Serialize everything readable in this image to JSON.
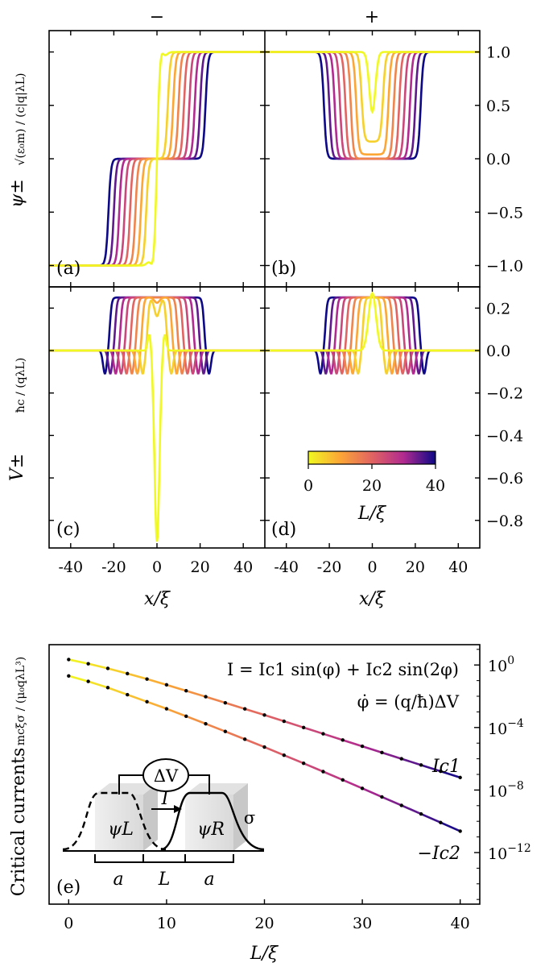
{
  "chart_data": [
    {
      "type": "line",
      "panel": "(a)",
      "column_title": "−",
      "ylabel": "ψ±",
      "ylabel_units": "√(ε₀m) / (c|q|λL)",
      "xlim": [
        -50,
        50
      ],
      "ylim": [
        -1.2,
        1.2
      ],
      "x_ticks": [
        "-40",
        "-20",
        "0",
        "20",
        "40"
      ],
      "y_ticks": [
        "−1.0",
        "−0.5",
        "0.0",
        "0.5",
        "1.0"
      ],
      "series_L": [
        0,
        5,
        10,
        15,
        20,
        25,
        30,
        35,
        40
      ],
      "description_shape": "odd kink profile; plateau 0 between ±L/2, ±1 outside"
    },
    {
      "type": "line",
      "panel": "(b)",
      "column_title": "+",
      "xlim": [
        -50,
        50
      ],
      "ylim": [
        -1.2,
        1.2
      ],
      "x_ticks": [
        "-40",
        "-20",
        "0",
        "20",
        "40"
      ],
      "y_ticks": [
        "−1.0",
        "−0.5",
        "0.0",
        "0.5",
        "1.0"
      ],
      "series_L": [
        0,
        5,
        10,
        15,
        20,
        25,
        30,
        35,
        40
      ],
      "min_values": [
        0.44,
        0.16,
        0.04,
        0,
        0,
        0,
        0,
        0,
        0
      ]
    },
    {
      "type": "line",
      "panel": "(c)",
      "ylabel": "V±",
      "ylabel_units": "ħc / (qλL)",
      "xlabel": "x/ξ",
      "xlim": [
        -50,
        50
      ],
      "ylim": [
        -0.93,
        0.3
      ],
      "x_ticks": [
        "-40",
        "-20",
        "0",
        "20",
        "40"
      ],
      "y_ticks": [
        "−0.8",
        "−0.6",
        "−0.4",
        "−0.2",
        "0.0",
        "0.2"
      ],
      "series_L": [
        0,
        5,
        10,
        15,
        20,
        25,
        30,
        35,
        40
      ],
      "plateau": 0.25,
      "dip": -0.11,
      "L0_min": -0.9
    },
    {
      "type": "line",
      "panel": "(d)",
      "xlabel": "x/ξ",
      "xlim": [
        -50,
        50
      ],
      "ylim": [
        -0.93,
        0.3
      ],
      "x_ticks": [
        "-40",
        "-20",
        "0",
        "20",
        "40"
      ],
      "y_ticks": [
        "−0.8",
        "−0.6",
        "−0.4",
        "−0.2",
        "0.0",
        "0.2"
      ],
      "series_L": [
        0,
        5,
        10,
        15,
        20,
        25,
        30,
        35,
        40
      ],
      "plateau": 0.25,
      "dip": -0.11,
      "L0_peak": 0.27,
      "colorbar": {
        "label": "L/ξ",
        "range": [
          0,
          40
        ],
        "ticks": [
          "0",
          "20",
          "40"
        ]
      }
    },
    {
      "type": "line",
      "panel": "(e)",
      "yscale": "log",
      "ylabel": "Critical currents",
      "ylabel_units": "mcξσ / (μ₀qλL³)",
      "xlabel": "L/ξ",
      "xlim": [
        -2,
        42
      ],
      "ylim_log10": [
        -15.3,
        1.3
      ],
      "x_ticks": [
        "0",
        "10",
        "20",
        "30",
        "40"
      ],
      "y_ticks": [
        "10^0",
        "10^−4",
        "10^−8",
        "10^−12"
      ],
      "equations": [
        "I = Ic1 sin(φ) + Ic2 sin(2φ)",
        "φ̇ = (q/ħ)ΔV"
      ],
      "series": [
        {
          "name": "Ic1",
          "x": [
            0,
            2,
            4,
            6,
            8,
            10,
            12,
            14,
            16,
            18,
            20,
            22,
            24,
            26,
            28,
            30,
            32,
            34,
            36,
            38,
            40
          ],
          "log10_y": [
            0.35,
            0.08,
            -0.22,
            -0.55,
            -0.9,
            -1.27,
            -1.65,
            -2.03,
            -2.42,
            -2.81,
            -3.2,
            -3.6,
            -4.0,
            -4.4,
            -4.8,
            -5.2,
            -5.6,
            -6.0,
            -6.4,
            -6.8,
            -7.2
          ]
        },
        {
          "name": "−Ic2",
          "x": [
            0,
            2,
            4,
            6,
            8,
            10,
            12,
            14,
            16,
            18,
            20,
            22,
            24,
            26,
            28,
            30,
            32,
            34,
            36,
            38,
            40
          ],
          "log10_y": [
            -0.7,
            -1.05,
            -1.45,
            -1.9,
            -2.35,
            -2.8,
            -3.28,
            -3.76,
            -4.25,
            -4.75,
            -5.25,
            -5.77,
            -6.29,
            -6.82,
            -7.35,
            -7.89,
            -8.44,
            -8.98,
            -9.53,
            -10.08,
            -10.63
          ]
        }
      ],
      "schematic": {
        "voltage": "ΔV",
        "current": "I",
        "left": "ψL",
        "right": "ψR",
        "sigma": "σ",
        "dims": [
          "a",
          "L",
          "a"
        ]
      }
    }
  ]
}
